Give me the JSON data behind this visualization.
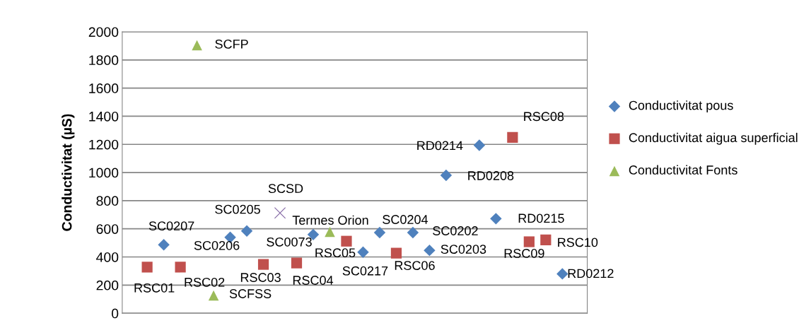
{
  "chart_data": {
    "type": "scatter",
    "ylabel": "Conductivitat (µS)",
    "categories": [
      null,
      null,
      null,
      null,
      null,
      null,
      null,
      null,
      null,
      null,
      null,
      null,
      null,
      null,
      null,
      null,
      null,
      null,
      null,
      null,
      null,
      null,
      null,
      null,
      null,
      null,
      null,
      null
    ],
    "ylim": [
      0,
      2000
    ],
    "yticks": [
      0,
      200,
      400,
      600,
      800,
      1000,
      1200,
      1400,
      1600,
      1800,
      2000
    ],
    "grid": "y",
    "legend": "right",
    "series": [
      {
        "name": "Conductivitat pous",
        "color": "#4f81bd",
        "marker": "diamond",
        "values": [
          null,
          null,
          487,
          null,
          null,
          null,
          539,
          585,
          null,
          null,
          null,
          559,
          null,
          null,
          434,
          573,
          null,
          573,
          447,
          980,
          null,
          1194,
          672,
          null,
          null,
          null,
          280,
          null
        ]
      },
      {
        "name": "Conductivitat aigua superficial",
        "color": "#c0504d",
        "marker": "square",
        "values": [
          null,
          328,
          null,
          328,
          null,
          null,
          null,
          null,
          347,
          null,
          357,
          null,
          null,
          512,
          null,
          null,
          427,
          null,
          null,
          null,
          null,
          null,
          null,
          1250,
          508,
          521,
          null,
          null
        ]
      },
      {
        "name": "Conductivitat Fonts",
        "color": "#9bbb59",
        "marker": "triangle",
        "values": [
          null,
          null,
          null,
          null,
          1905,
          126,
          null,
          null,
          null,
          null,
          null,
          null,
          578,
          null,
          null,
          null,
          null,
          null,
          null,
          null,
          null,
          null,
          null,
          null,
          null,
          null,
          null,
          null
        ]
      },
      {
        "color": "#8064a2",
        "marker": "cross",
        "values": [
          null,
          null,
          null,
          null,
          null,
          null,
          null,
          null,
          null,
          713,
          null,
          null,
          null,
          null,
          null,
          null,
          null,
          null,
          null,
          null,
          null,
          null,
          null,
          null,
          null,
          null,
          null,
          null
        ]
      }
    ],
    "annotations": [
      "RSC01",
      "SC0207",
      "RSC02",
      "SCFP",
      "SCFSS",
      "SC0206",
      "SC0205",
      "RSC03",
      "SCSD",
      "RSC04",
      "SC0073",
      "Termes Orion",
      "RSC05",
      "SC0217",
      "SC0204",
      "RSC06",
      "SC0202",
      "SC0203",
      "RD0208",
      "RD0214",
      "RD0215",
      "RSC08",
      "RSC09",
      "RSC10",
      "RD0212"
    ]
  }
}
